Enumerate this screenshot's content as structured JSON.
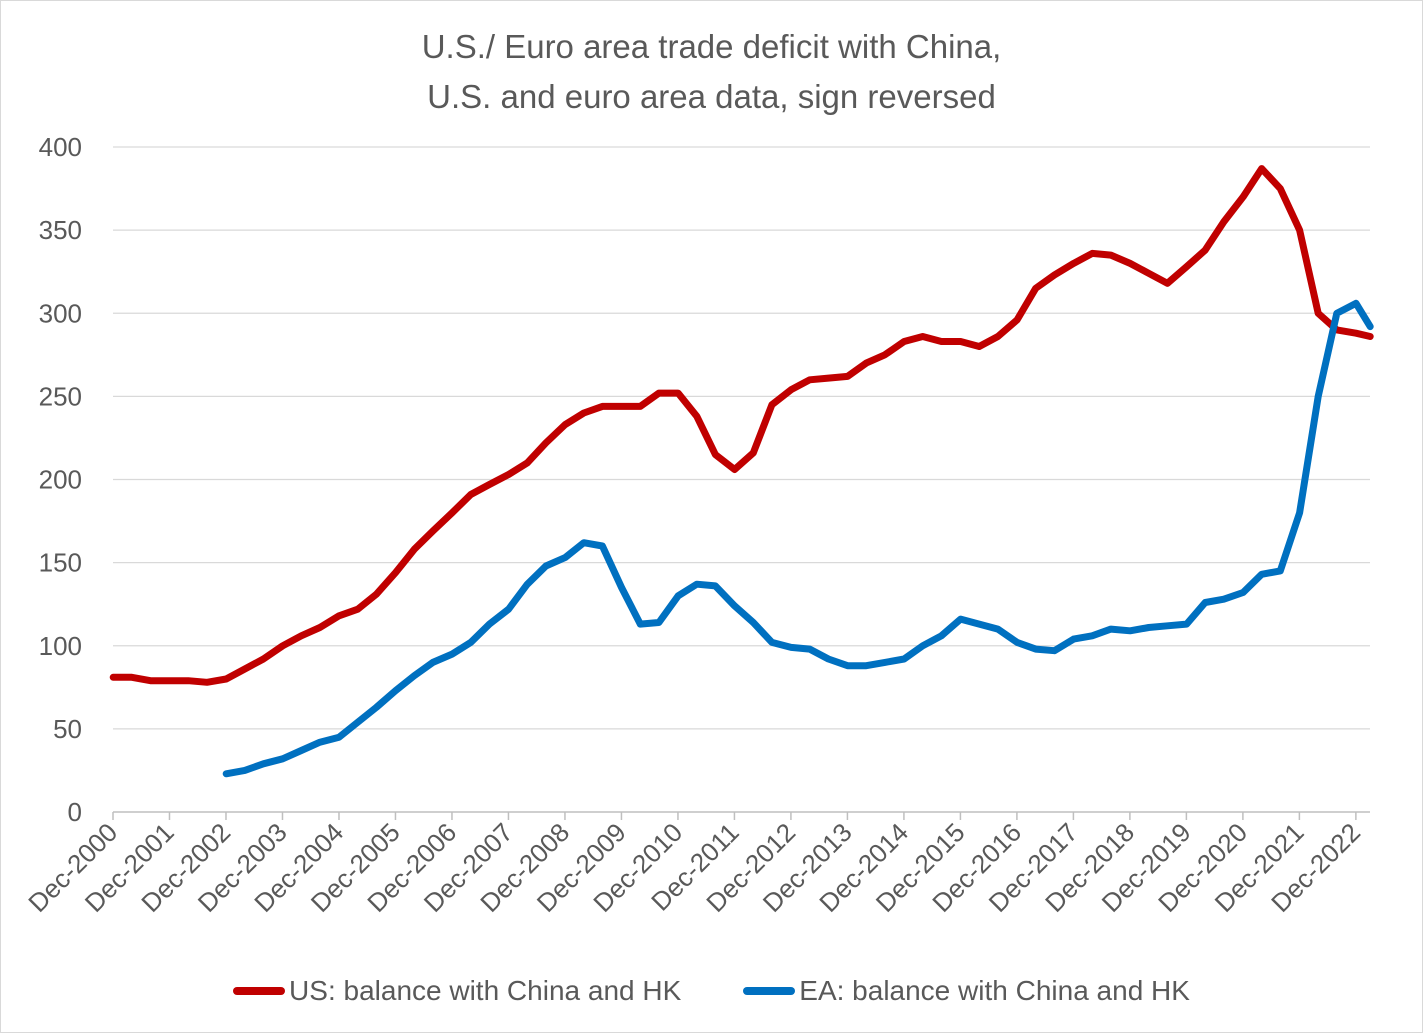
{
  "chart_data": {
    "type": "line",
    "title_line1": "U.S./ Euro area trade deficit with China,",
    "title_line2": "U.S. and euro area data, sign reversed",
    "xlabel": "",
    "ylabel": "",
    "ylim": [
      0,
      400
    ],
    "yticks": [
      0,
      50,
      100,
      150,
      200,
      250,
      300,
      350,
      400
    ],
    "xlim": [
      2000.917,
      2023.167
    ],
    "xtick_labels": [
      "Dec-2000",
      "Dec-2001",
      "Dec-2002",
      "Dec-2003",
      "Dec-2004",
      "Dec-2005",
      "Dec-2006",
      "Dec-2007",
      "Dec-2008",
      "Dec-2009",
      "Dec-2010",
      "Dec-2011",
      "Dec-2012",
      "Dec-2013",
      "Dec-2014",
      "Dec-2015",
      "Dec-2016",
      "Dec-2017",
      "Dec-2018",
      "Dec-2019",
      "Dec-2020",
      "Dec-2021",
      "Dec-2022"
    ],
    "grid": true,
    "legend_position": "bottom",
    "series": [
      {
        "name": "US: balance with China and HK",
        "color": "#c00000",
        "x": [
          2000.92,
          2001.25,
          2001.58,
          2001.92,
          2002.25,
          2002.58,
          2002.92,
          2003.25,
          2003.58,
          2003.92,
          2004.25,
          2004.58,
          2004.92,
          2005.25,
          2005.58,
          2005.92,
          2006.25,
          2006.58,
          2006.92,
          2007.25,
          2007.58,
          2007.92,
          2008.25,
          2008.58,
          2008.92,
          2009.25,
          2009.58,
          2009.92,
          2010.25,
          2010.58,
          2010.92,
          2011.25,
          2011.58,
          2011.92,
          2012.25,
          2012.58,
          2012.92,
          2013.25,
          2013.58,
          2013.92,
          2014.25,
          2014.58,
          2014.92,
          2015.25,
          2015.58,
          2015.92,
          2016.25,
          2016.58,
          2016.92,
          2017.25,
          2017.58,
          2017.92,
          2018.25,
          2018.58,
          2018.92,
          2019.25,
          2019.58,
          2019.92,
          2020.25,
          2020.58,
          2020.92,
          2021.25,
          2021.58,
          2021.92,
          2022.25,
          2022.58,
          2022.92,
          2023.17
        ],
        "values": [
          81,
          81,
          79,
          79,
          79,
          78,
          80,
          86,
          92,
          100,
          106,
          111,
          118,
          122,
          131,
          144,
          158,
          169,
          180,
          191,
          197,
          203,
          210,
          222,
          233,
          240,
          244,
          244,
          244,
          252,
          252,
          238,
          215,
          206,
          216,
          245,
          254,
          260,
          261,
          262,
          270,
          275,
          283,
          286,
          283,
          283,
          280,
          286,
          296,
          315,
          323,
          330,
          336,
          335,
          330,
          324,
          318,
          328,
          338,
          355,
          370,
          387,
          375,
          350,
          300,
          290,
          288,
          286
        ]
      },
      {
        "name": "EA: balance with China and HK",
        "color": "#0070c0",
        "x": [
          2002.92,
          2003.25,
          2003.58,
          2003.92,
          2004.25,
          2004.58,
          2004.92,
          2005.25,
          2005.58,
          2005.92,
          2006.25,
          2006.58,
          2006.92,
          2007.25,
          2007.58,
          2007.92,
          2008.25,
          2008.58,
          2008.92,
          2009.25,
          2009.58,
          2009.92,
          2010.25,
          2010.58,
          2010.92,
          2011.25,
          2011.58,
          2011.92,
          2012.25,
          2012.58,
          2012.92,
          2013.25,
          2013.58,
          2013.92,
          2014.25,
          2014.58,
          2014.92,
          2015.25,
          2015.58,
          2015.92,
          2016.25,
          2016.58,
          2016.92,
          2017.25,
          2017.58,
          2017.92,
          2018.25,
          2018.58,
          2018.92,
          2019.25,
          2019.58,
          2019.92,
          2020.25,
          2020.58,
          2020.92,
          2021.25,
          2021.58,
          2021.92,
          2022.25,
          2022.58,
          2022.92,
          2023.17
        ],
        "values": [
          23,
          25,
          29,
          32,
          37,
          42,
          45,
          54,
          63,
          73,
          82,
          90,
          95,
          102,
          113,
          122,
          137,
          148,
          153,
          162,
          160,
          135,
          113,
          114,
          130,
          137,
          136,
          124,
          114,
          102,
          99,
          98,
          92,
          88,
          88,
          90,
          92,
          100,
          106,
          116,
          113,
          110,
          102,
          98,
          97,
          104,
          106,
          110,
          109,
          111,
          112,
          113,
          126,
          128,
          132,
          143,
          145,
          180,
          250,
          300,
          306,
          292
        ]
      }
    ]
  }
}
